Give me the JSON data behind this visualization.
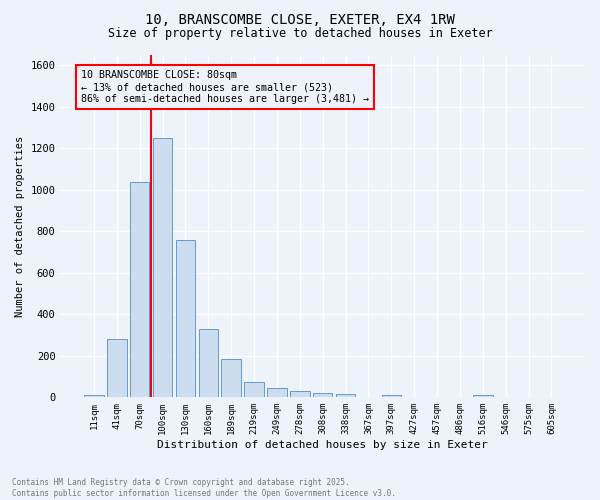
{
  "title_line1": "10, BRANSCOMBE CLOSE, EXETER, EX4 1RW",
  "title_line2": "Size of property relative to detached houses in Exeter",
  "xlabel": "Distribution of detached houses by size in Exeter",
  "ylabel": "Number of detached properties",
  "bar_labels": [
    "11sqm",
    "41sqm",
    "70sqm",
    "100sqm",
    "130sqm",
    "160sqm",
    "189sqm",
    "219sqm",
    "249sqm",
    "278sqm",
    "308sqm",
    "338sqm",
    "367sqm",
    "397sqm",
    "427sqm",
    "457sqm",
    "486sqm",
    "516sqm",
    "546sqm",
    "575sqm",
    "605sqm"
  ],
  "bar_values": [
    10,
    280,
    1040,
    1250,
    760,
    330,
    185,
    75,
    45,
    32,
    22,
    15,
    0,
    12,
    0,
    0,
    0,
    12,
    0,
    0,
    0
  ],
  "bar_color": "#ccddf0",
  "bar_edge_color": "#6699cc",
  "red_line_x": 2.5,
  "ylim": [
    0,
    1650
  ],
  "yticks": [
    0,
    200,
    400,
    600,
    800,
    1000,
    1200,
    1400,
    1600
  ],
  "annotation_title": "10 BRANSCOMBE CLOSE: 80sqm",
  "annotation_line2": "← 13% of detached houses are smaller (523)",
  "annotation_line3": "86% of semi-detached houses are larger (3,481) →",
  "footnote_line1": "Contains HM Land Registry data © Crown copyright and database right 2025.",
  "footnote_line2": "Contains public sector information licensed under the Open Government Licence v3.0.",
  "background_color": "#eef2fa",
  "grid_color": "#ffffff"
}
